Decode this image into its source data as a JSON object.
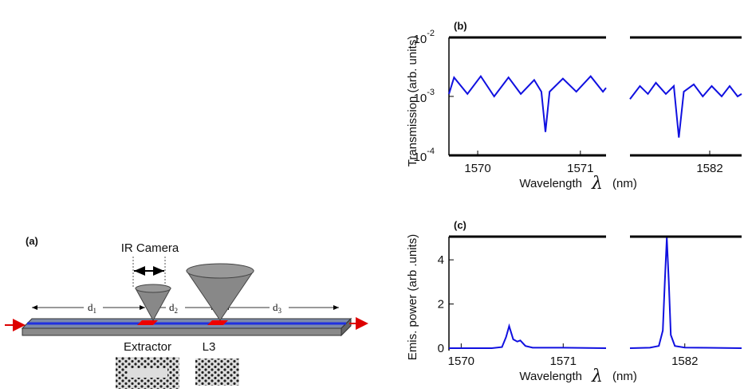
{
  "diagram": {
    "panel_label": "(a)",
    "camera": "IR Camera",
    "distances": [
      {
        "label": "d",
        "sub": "1"
      },
      {
        "label": "d",
        "sub": "2"
      },
      {
        "label": "d",
        "sub": "3"
      }
    ],
    "parts": [
      "Extractor",
      "L3"
    ]
  },
  "chart_data": [
    {
      "type": "line",
      "panel_label": "(b)",
      "ylabel": "Transmission (arb. units)",
      "xlabel": "Wavelength",
      "xlabel_symbol": "λ",
      "xlabel_unit": "(nm)",
      "log_y": true,
      "ylim": [
        0.0001,
        0.01
      ],
      "yticks": [
        {
          "value": 0.0001,
          "label": "10",
          "exponent": "-4"
        },
        {
          "value": 0.001,
          "label": "10",
          "exponent": "-3"
        },
        {
          "value": 0.01,
          "label": "10",
          "exponent": "-2"
        }
      ],
      "bottom_frame": true,
      "color": "#1010e0",
      "segments": [
        {
          "xlim": [
            1569.72,
            1571.25
          ],
          "xticks": [
            1570,
            1571
          ],
          "x": [
            1569.72,
            1569.77,
            1569.9,
            1570.03,
            1570.16,
            1570.3,
            1570.42,
            1570.55,
            1570.62,
            1570.66,
            1570.7,
            1570.83,
            1570.96,
            1571.1,
            1571.22,
            1571.25
          ],
          "values": [
            0.0011,
            0.0021,
            0.0011,
            0.0022,
            0.001,
            0.0021,
            0.0011,
            0.0019,
            0.0012,
            0.00025,
            0.0012,
            0.002,
            0.0012,
            0.0022,
            0.0012,
            0.0014
          ]
        },
        {
          "xlim": [
            1581.2,
            1582.32
          ],
          "xticks": [
            1582
          ],
          "x": [
            1581.2,
            1581.3,
            1581.38,
            1581.46,
            1581.56,
            1581.64,
            1581.69,
            1581.74,
            1581.84,
            1581.93,
            1582.02,
            1582.12,
            1582.2,
            1582.28,
            1582.32
          ],
          "values": [
            0.0009,
            0.0015,
            0.0011,
            0.0017,
            0.0011,
            0.0015,
            0.0002,
            0.0012,
            0.0016,
            0.001,
            0.0015,
            0.001,
            0.0015,
            0.001,
            0.0011
          ]
        }
      ]
    },
    {
      "type": "line",
      "panel_label": "(c)",
      "ylabel": "Emis. power (arb .units)",
      "xlabel": "Wavelength",
      "xlabel_symbol": "λ",
      "xlabel_unit": "(nm)",
      "log_y": false,
      "ylim": [
        0,
        5.05
      ],
      "yticks": [
        0,
        2,
        4
      ],
      "bottom_frame": false,
      "color": "#1010e0",
      "segments": [
        {
          "xlim": [
            1569.88,
            1571.42
          ],
          "xticks": [
            1570,
            1571
          ],
          "x": [
            1569.88,
            1570.3,
            1570.4,
            1570.44,
            1570.47,
            1570.51,
            1570.55,
            1570.58,
            1570.63,
            1570.7,
            1571.0,
            1571.42
          ],
          "values": [
            0,
            0,
            0.05,
            0.5,
            1.0,
            0.4,
            0.3,
            0.35,
            0.1,
            0.02,
            0.02,
            0
          ]
        },
        {
          "xlim": [
            1581.45,
            1582.57
          ],
          "xticks": [
            1582
          ],
          "x": [
            1581.45,
            1581.65,
            1581.74,
            1581.78,
            1581.8,
            1581.82,
            1581.84,
            1581.86,
            1581.9,
            1582.0,
            1582.57
          ],
          "values": [
            0,
            0.02,
            0.1,
            0.8,
            3.0,
            5.0,
            3.0,
            0.6,
            0.1,
            0.03,
            0
          ]
        }
      ]
    }
  ]
}
